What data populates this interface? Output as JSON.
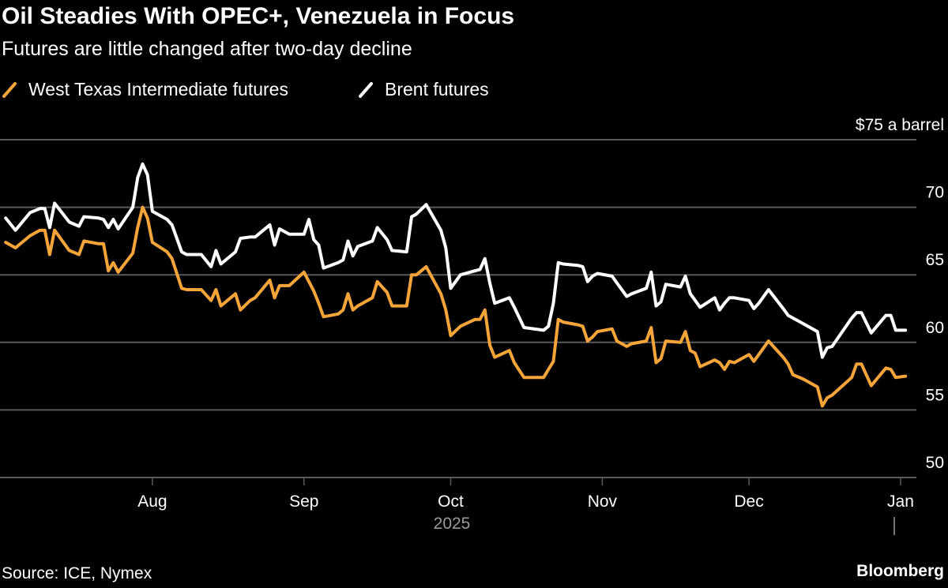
{
  "chart_data": {
    "type": "line",
    "title": "Oil Steadies With OPEC+, Venezuela in Focus",
    "subtitle": "Futures are little changed after two-day decline",
    "ylabel": "$75 a barrel",
    "ylim": [
      50,
      75
    ],
    "yticks": [
      50,
      55,
      60,
      65,
      70,
      75
    ],
    "ytick_labels": [
      "50",
      "55",
      "60",
      "65",
      "70",
      "$75 a barrel"
    ],
    "xlim": [
      "2025-07-01",
      "2026-01-03"
    ],
    "xticks": [
      {
        "date": "2025-08-01",
        "label": "Aug"
      },
      {
        "date": "2025-09-01",
        "label": "Sep"
      },
      {
        "date": "2025-10-01",
        "label": "Oct"
      },
      {
        "date": "2025-11-01",
        "label": "Nov"
      },
      {
        "date": "2025-12-01",
        "label": "Dec"
      },
      {
        "date": "2026-01-01",
        "label": "Jan"
      }
    ],
    "year_label": "2025",
    "grid": true,
    "legend_position": "top-left",
    "source": "Source: ICE, Nymex",
    "brand": "Bloomberg",
    "x": [
      "2025-07-02",
      "2025-07-04",
      "2025-07-07",
      "2025-07-09",
      "2025-07-10",
      "2025-07-11",
      "2025-07-12",
      "2025-07-15",
      "2025-07-17",
      "2025-07-18",
      "2025-07-21",
      "2025-07-22",
      "2025-07-23",
      "2025-07-24",
      "2025-07-25",
      "2025-07-28",
      "2025-07-29",
      "2025-07-30",
      "2025-07-31",
      "2025-08-01",
      "2025-08-04",
      "2025-08-05",
      "2025-08-07",
      "2025-08-08",
      "2025-08-11",
      "2025-08-13",
      "2025-08-14",
      "2025-08-15",
      "2025-08-18",
      "2025-08-19",
      "2025-08-21",
      "2025-08-22",
      "2025-08-25",
      "2025-08-26",
      "2025-08-27",
      "2025-08-29",
      "2025-09-01",
      "2025-09-02",
      "2025-09-03",
      "2025-09-04",
      "2025-09-05",
      "2025-09-08",
      "2025-09-09",
      "2025-09-10",
      "2025-09-11",
      "2025-09-12",
      "2025-09-15",
      "2025-09-16",
      "2025-09-18",
      "2025-09-19",
      "2025-09-22",
      "2025-09-23",
      "2025-09-24",
      "2025-09-26",
      "2025-09-29",
      "2025-09-30",
      "2025-10-01",
      "2025-10-03",
      "2025-10-06",
      "2025-10-07",
      "2025-10-08",
      "2025-10-09",
      "2025-10-10",
      "2025-10-13",
      "2025-10-14",
      "2025-10-16",
      "2025-10-20",
      "2025-10-21",
      "2025-10-22",
      "2025-10-23",
      "2025-10-24",
      "2025-10-27",
      "2025-10-28",
      "2025-10-29",
      "2025-10-30",
      "2025-10-31",
      "2025-11-03",
      "2025-11-04",
      "2025-11-06",
      "2025-11-07",
      "2025-11-10",
      "2025-11-11",
      "2025-11-12",
      "2025-11-13",
      "2025-11-14",
      "2025-11-17",
      "2025-11-18",
      "2025-11-19",
      "2025-11-20",
      "2025-11-21",
      "2025-11-24",
      "2025-11-25",
      "2025-11-26",
      "2025-11-27",
      "2025-11-28",
      "2025-12-01",
      "2025-12-02",
      "2025-12-03",
      "2025-12-05",
      "2025-12-08",
      "2025-12-09",
      "2025-12-10",
      "2025-12-12",
      "2025-12-15",
      "2025-12-16",
      "2025-12-17",
      "2025-12-18",
      "2025-12-22",
      "2025-12-23",
      "2025-12-24",
      "2025-12-26",
      "2025-12-29",
      "2025-12-30",
      "2025-12-31",
      "2026-01-02"
    ],
    "series": [
      {
        "name": "West Texas Intermediate futures",
        "color": "#f5a43a",
        "values": [
          67.4,
          67.0,
          67.9,
          68.3,
          68.3,
          66.5,
          68.3,
          66.8,
          66.5,
          67.5,
          67.3,
          67.3,
          65.3,
          65.9,
          65.2,
          66.6,
          68.5,
          70.0,
          69.2,
          67.4,
          66.7,
          66.2,
          64.0,
          63.9,
          63.9,
          63.1,
          63.9,
          62.7,
          63.6,
          62.4,
          63.1,
          63.3,
          64.6,
          63.3,
          64.2,
          64.2,
          65.2,
          64.5,
          63.8,
          62.9,
          61.9,
          62.1,
          62.4,
          63.6,
          62.4,
          62.7,
          63.3,
          64.5,
          63.7,
          62.7,
          62.7,
          65.0,
          65.0,
          65.6,
          63.6,
          62.4,
          60.5,
          61.2,
          61.7,
          61.7,
          62.4,
          59.8,
          58.9,
          59.4,
          58.5,
          57.4,
          57.4,
          58.0,
          58.6,
          61.7,
          61.5,
          61.3,
          61.2,
          60.1,
          60.4,
          60.8,
          61.0,
          60.1,
          59.7,
          59.9,
          60.1,
          61.1,
          58.5,
          58.8,
          60.1,
          60.0,
          60.8,
          59.4,
          59.2,
          58.2,
          58.7,
          58.5,
          58.0,
          58.6,
          58.5,
          59.1,
          58.6,
          59.1,
          60.1,
          58.9,
          58.4,
          57.6,
          57.3,
          56.7,
          55.3,
          55.9,
          56.1,
          57.4,
          58.4,
          58.4,
          56.8,
          58.1,
          58.0,
          57.4,
          57.5
        ]
      },
      {
        "name": "Brent futures",
        "color": "#ffffff",
        "values": [
          69.2,
          68.3,
          69.6,
          69.9,
          69.9,
          68.5,
          70.3,
          68.9,
          68.6,
          69.3,
          69.2,
          69.1,
          68.5,
          69.1,
          68.4,
          70.0,
          72.2,
          73.2,
          72.4,
          69.7,
          69.1,
          68.7,
          66.7,
          66.5,
          66.5,
          65.6,
          66.8,
          65.8,
          66.7,
          67.7,
          67.8,
          67.8,
          68.7,
          67.2,
          68.4,
          68.0,
          68.0,
          69.1,
          67.6,
          67.2,
          65.5,
          65.9,
          66.1,
          67.5,
          66.4,
          67.1,
          67.5,
          68.5,
          67.6,
          66.8,
          66.7,
          69.3,
          69.5,
          70.2,
          68.3,
          67.0,
          64.0,
          65.0,
          65.3,
          65.4,
          66.2,
          64.4,
          62.9,
          63.3,
          62.6,
          61.1,
          60.9,
          61.2,
          62.9,
          65.9,
          65.8,
          65.7,
          65.6,
          64.5,
          64.9,
          65.1,
          64.9,
          64.4,
          63.4,
          63.6,
          64.0,
          65.2,
          62.7,
          63.0,
          64.3,
          64.1,
          64.9,
          63.6,
          63.1,
          62.6,
          63.3,
          62.4,
          62.9,
          63.3,
          63.3,
          63.1,
          62.5,
          62.9,
          63.9,
          62.5,
          62.0,
          61.8,
          61.4,
          60.8,
          58.9,
          59.6,
          59.7,
          61.8,
          62.2,
          62.2,
          60.7,
          62.0,
          62.0,
          60.9,
          60.9
        ]
      }
    ]
  }
}
